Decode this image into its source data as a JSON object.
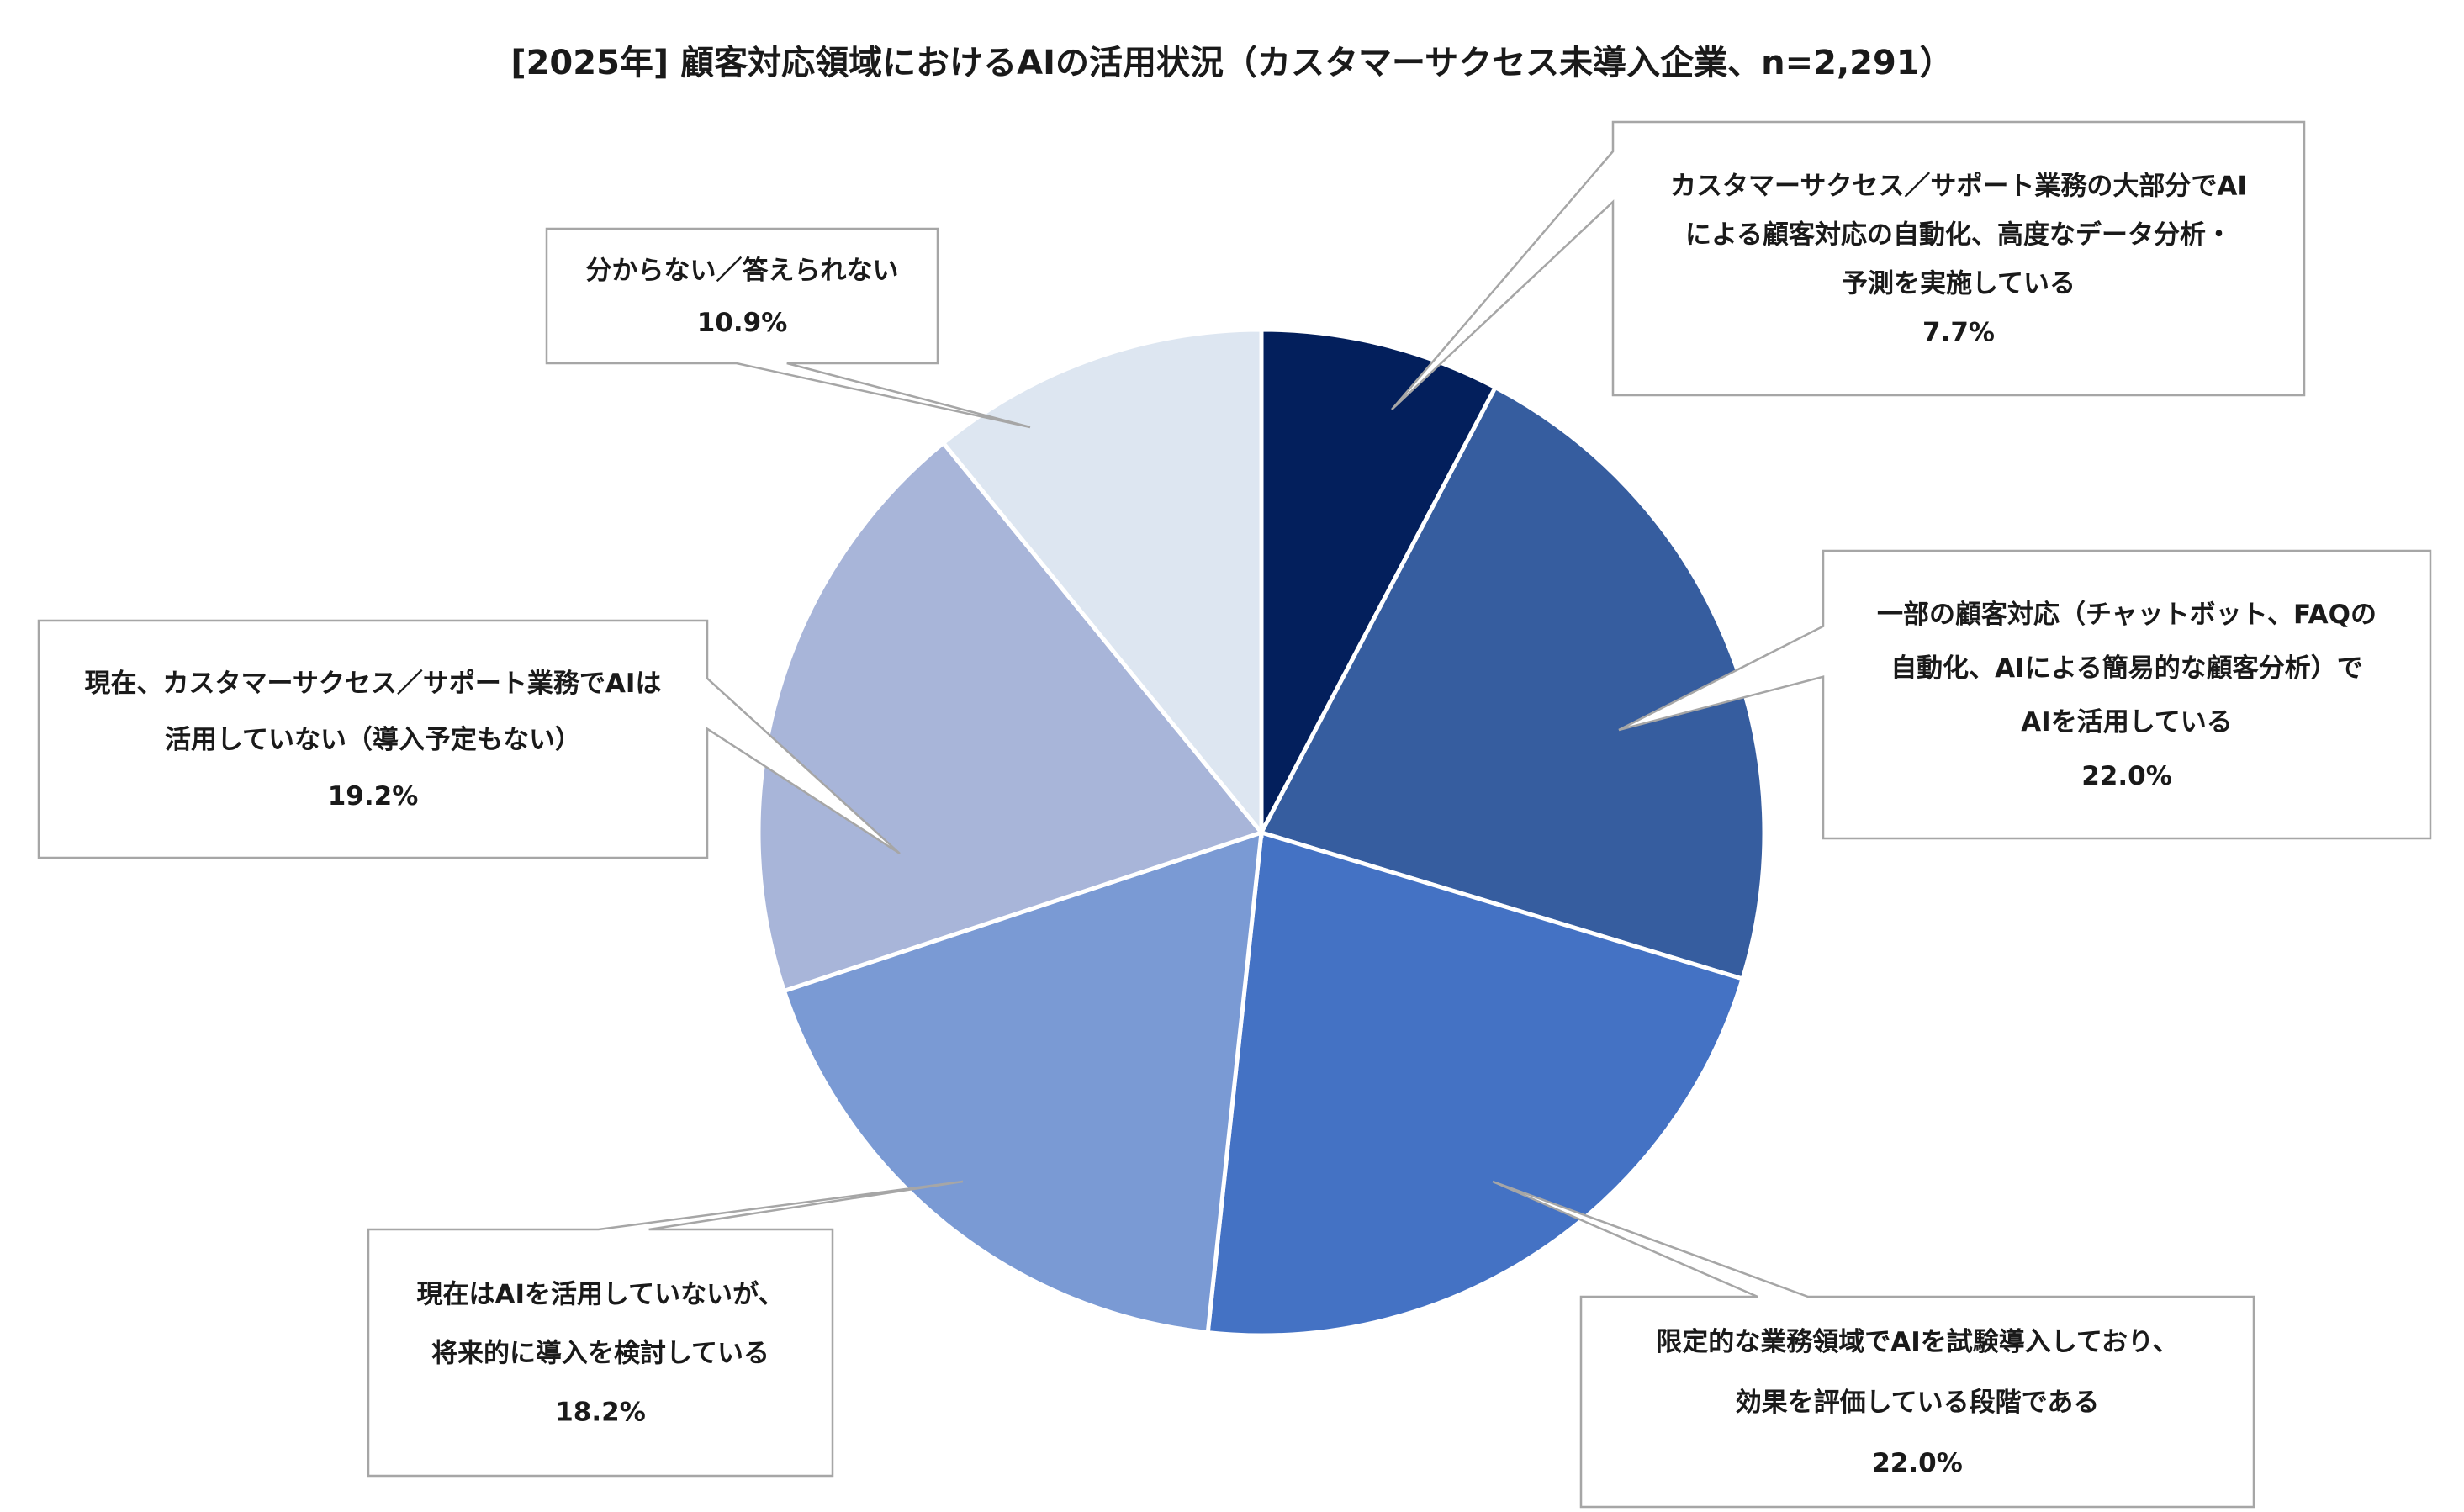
{
  "chart_data": {
    "type": "pie",
    "title": "[2025年] 顧客対応領域におけるAIの活用状況（カスタマーサクセス未導入企業、n=2,291）",
    "slices": [
      {
        "label_lines": [
          "カスタマーサクセス／サポート業務の大部分でAI",
          "による顧客対応の自動化、高度なデータ分析・",
          "予測を実施している"
        ],
        "value": 7.7,
        "value_label": "7.7%",
        "color": "#031f5c"
      },
      {
        "label_lines": [
          "一部の顧客対応（チャットボット、FAQの",
          "自動化、AIによる簡易的な顧客分析）で",
          "AIを活用している"
        ],
        "value": 22.0,
        "value_label": "22.0%",
        "color": "#365d9f"
      },
      {
        "label_lines": [
          "限定的な業務領域でAIを試験導入しており、",
          "効果を評価している段階である"
        ],
        "value": 22.0,
        "value_label": "22.0%",
        "color": "#4472c4"
      },
      {
        "label_lines": [
          "現在はAIを活用していないが、",
          "将来的に導入を検討している"
        ],
        "value": 18.2,
        "value_label": "18.2%",
        "color": "#7a9ad4"
      },
      {
        "label_lines": [
          "現在、カスタマーサクセス／サポート業務でAIは",
          "活用していない（導入予定もない）"
        ],
        "value": 19.2,
        "value_label": "19.2%",
        "color": "#a8b5d9"
      },
      {
        "label_lines": [
          "分からない／答えられない"
        ],
        "value": 10.9,
        "value_label": "10.9%",
        "color": "#dde6f1"
      }
    ]
  }
}
